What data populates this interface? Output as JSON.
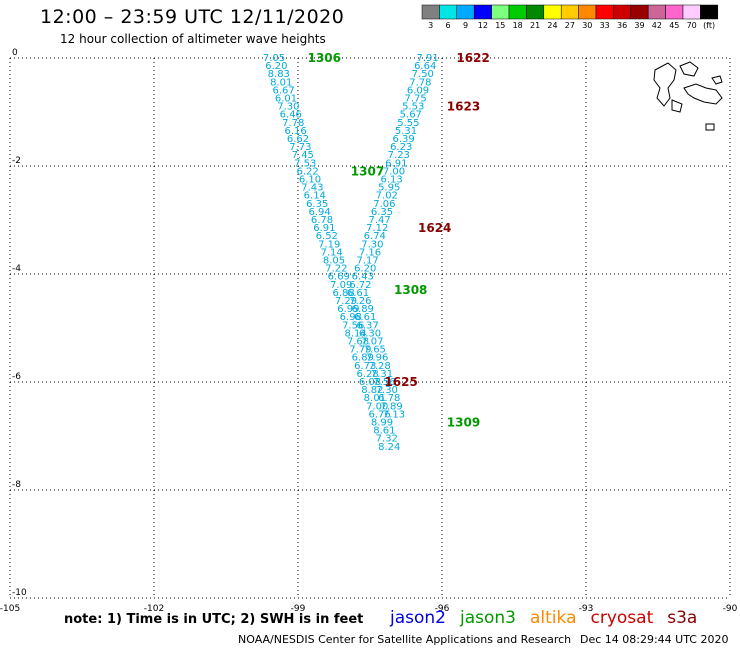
{
  "header": {
    "title": "12:00 – 23:59 UTC 12/11/2020",
    "subtitle": "12 hour collection of altimeter wave heights"
  },
  "colorbar": {
    "labels": [
      "3",
      "6",
      "9",
      "12",
      "15",
      "18",
      "21",
      "24",
      "27",
      "30",
      "33",
      "36",
      "39",
      "42",
      "45",
      "70",
      "(ft)"
    ],
    "colors": [
      "#808080",
      "#00e5e5",
      "#00aaff",
      "#0000ff",
      "#7fff7f",
      "#00cc00",
      "#008800",
      "#ffff00",
      "#ffcc00",
      "#ff8800",
      "#ff0000",
      "#cc0000",
      "#990000",
      "#cc6699",
      "#ff66cc",
      "#ffccff",
      "#000000"
    ]
  },
  "footer": {
    "note": "note: 1) Time is in UTC; 2) SWH is in feet",
    "satellites": [
      {
        "name": "jason2",
        "color": "#0000dd"
      },
      {
        "name": "jason3",
        "color": "#009900"
      },
      {
        "name": "altika",
        "color": "#ff8800"
      },
      {
        "name": "cryosat",
        "color": "#cc0000"
      },
      {
        "name": "s3a",
        "color": "#880000"
      }
    ],
    "credit": "NOAA/NESDIS Center for Satellite Applications and Research",
    "timestamp": "Dec 14 08:29:44 UTC 2020"
  },
  "chart_data": {
    "type": "scatter",
    "title": "12:00 – 23:59 UTC 12/11/2020",
    "subtitle": "12 hour collection of altimeter wave heights",
    "xlabel": "",
    "ylabel": "",
    "xlim": [
      -105,
      -90
    ],
    "ylim": [
      -10,
      0
    ],
    "x_ticks": [
      -105,
      -102,
      -99,
      -96,
      -93,
      -90
    ],
    "y_ticks": [
      0,
      -2,
      -4,
      -6,
      -8,
      -10
    ],
    "grid": true,
    "value_color": "#00aadd",
    "series": [
      {
        "name": "jason3",
        "color": "#009900",
        "points": [
          [
            -99.5,
            0.0,
            "7.05"
          ],
          [
            -99.45,
            -0.15,
            "6.20"
          ],
          [
            -99.4,
            -0.3,
            "8.83"
          ],
          [
            -99.35,
            -0.45,
            "8.01"
          ],
          [
            -99.3,
            -0.6,
            "6.67"
          ],
          [
            -99.25,
            -0.75,
            "6.01"
          ],
          [
            -99.2,
            -0.9,
            "7.30"
          ],
          [
            -99.15,
            -1.05,
            "6.46"
          ],
          [
            -99.1,
            -1.2,
            "7.78"
          ],
          [
            -99.05,
            -1.35,
            "6.16"
          ],
          [
            -99.0,
            -1.5,
            "6.62"
          ],
          [
            -98.95,
            -1.65,
            "7.73"
          ],
          [
            -98.9,
            -1.8,
            "7.45"
          ],
          [
            -98.85,
            -1.95,
            "7.53"
          ],
          [
            -98.8,
            -2.1,
            "6.22"
          ],
          [
            -98.75,
            -2.25,
            "6.10"
          ],
          [
            -98.7,
            -2.4,
            "7.43"
          ],
          [
            -98.65,
            -2.55,
            "6.14"
          ],
          [
            -98.6,
            -2.7,
            "6.35"
          ],
          [
            -98.55,
            -2.85,
            "6.94"
          ],
          [
            -98.5,
            -3.0,
            "6.78"
          ],
          [
            -98.45,
            -3.15,
            "6.91"
          ],
          [
            -98.4,
            -3.3,
            "6.52"
          ],
          [
            -98.35,
            -3.45,
            "7.19"
          ],
          [
            -98.3,
            -3.6,
            "7.14"
          ],
          [
            -98.25,
            -3.75,
            "8.05"
          ],
          [
            -98.2,
            -3.9,
            "7.22"
          ],
          [
            -98.15,
            -4.05,
            "6.69"
          ],
          [
            -98.1,
            -4.2,
            "7.09"
          ],
          [
            -98.05,
            -4.35,
            "6.88"
          ],
          [
            -98.0,
            -4.5,
            "7.29"
          ],
          [
            -97.95,
            -4.65,
            "6.99"
          ],
          [
            -97.9,
            -4.8,
            "6.98"
          ],
          [
            -97.85,
            -4.95,
            "7.56"
          ],
          [
            -97.8,
            -5.1,
            "8.14"
          ],
          [
            -97.75,
            -5.25,
            "7.68"
          ],
          [
            -97.7,
            -5.4,
            "7.79"
          ],
          [
            -97.65,
            -5.55,
            "6.89"
          ],
          [
            -97.6,
            -5.7,
            "6.73"
          ],
          [
            -97.55,
            -5.85,
            "6.28"
          ],
          [
            -97.5,
            -6.0,
            "6.08"
          ],
          [
            -97.45,
            -6.15,
            "8.82"
          ],
          [
            -97.4,
            -6.3,
            "8.01"
          ],
          [
            -97.35,
            -6.45,
            "7.00"
          ],
          [
            -97.3,
            -6.6,
            "6.76"
          ],
          [
            -97.25,
            -6.75,
            "8.99"
          ],
          [
            -97.2,
            -6.9,
            "8.61"
          ],
          [
            -97.15,
            -7.05,
            "7.32"
          ],
          [
            -97.1,
            -7.2,
            "8.24"
          ]
        ],
        "orbits": [
          {
            "label": "1306",
            "x": -98.8,
            "y": 0.0
          },
          {
            "label": "1307",
            "x": -97.9,
            "y": -2.1
          },
          {
            "label": "1308",
            "x": -97.0,
            "y": -4.3
          },
          {
            "label": "1309",
            "x": -95.9,
            "y": -6.75
          }
        ]
      },
      {
        "name": "cryosat",
        "color": "#880000",
        "points": [
          [
            -96.3,
            0.0,
            "7.91"
          ],
          [
            -96.35,
            -0.15,
            "6.64"
          ],
          [
            -96.4,
            -0.3,
            "7.50"
          ],
          [
            -96.45,
            -0.45,
            "7.78"
          ],
          [
            -96.5,
            -0.6,
            "6.09"
          ],
          [
            -96.55,
            -0.75,
            "7.75"
          ],
          [
            -96.6,
            -0.9,
            "5.53"
          ],
          [
            -96.65,
            -1.05,
            "5.67"
          ],
          [
            -96.7,
            -1.2,
            "5.55"
          ],
          [
            -96.75,
            -1.35,
            "5.31"
          ],
          [
            -96.8,
            -1.5,
            "6.39"
          ],
          [
            -96.85,
            -1.65,
            "6.23"
          ],
          [
            -96.9,
            -1.8,
            "7.23"
          ],
          [
            -96.95,
            -1.95,
            "6.91"
          ],
          [
            -97.0,
            -2.1,
            "7.00"
          ],
          [
            -97.05,
            -2.25,
            "6.13"
          ],
          [
            -97.1,
            -2.4,
            "5.95"
          ],
          [
            -97.15,
            -2.55,
            "7.02"
          ],
          [
            -97.2,
            -2.7,
            "7.06"
          ],
          [
            -97.25,
            -2.85,
            "6.35"
          ],
          [
            -97.3,
            -3.0,
            "7.47"
          ],
          [
            -97.35,
            -3.15,
            "7.12"
          ],
          [
            -97.4,
            -3.3,
            "6.74"
          ],
          [
            -97.45,
            -3.45,
            "7.30"
          ],
          [
            -97.5,
            -3.6,
            "7.16"
          ],
          [
            -97.55,
            -3.75,
            "7.17"
          ],
          [
            -97.6,
            -3.9,
            "6.20"
          ],
          [
            -97.65,
            -4.05,
            "6.43"
          ],
          [
            -97.7,
            -4.2,
            "6.72"
          ],
          [
            -97.75,
            -4.35,
            "6.61"
          ],
          [
            -97.7,
            -4.5,
            "7.26"
          ],
          [
            -97.65,
            -4.65,
            "6.89"
          ],
          [
            -97.6,
            -4.8,
            "6.61"
          ],
          [
            -97.55,
            -4.95,
            "6.37"
          ],
          [
            -97.5,
            -5.1,
            "6.30"
          ],
          [
            -97.45,
            -5.25,
            "7.07"
          ],
          [
            -97.4,
            -5.4,
            "7.65"
          ],
          [
            -97.35,
            -5.55,
            "7.96"
          ],
          [
            -97.3,
            -5.7,
            "7.28"
          ],
          [
            -97.25,
            -5.85,
            "7.31"
          ],
          [
            -97.2,
            -6.0,
            "7.56"
          ],
          [
            -97.15,
            -6.15,
            "7.30"
          ],
          [
            -97.1,
            -6.3,
            "6.78"
          ],
          [
            -97.05,
            -6.45,
            "7.89"
          ],
          [
            -97.0,
            -6.6,
            "7.13"
          ]
        ],
        "orbits": [
          {
            "label": "1622",
            "x": -95.7,
            "y": 0.0
          },
          {
            "label": "1623",
            "x": -95.9,
            "y": -0.9
          },
          {
            "label": "1624",
            "x": -96.5,
            "y": -3.15
          },
          {
            "label": "1625",
            "x": -97.2,
            "y": -6.0
          }
        ]
      }
    ]
  }
}
